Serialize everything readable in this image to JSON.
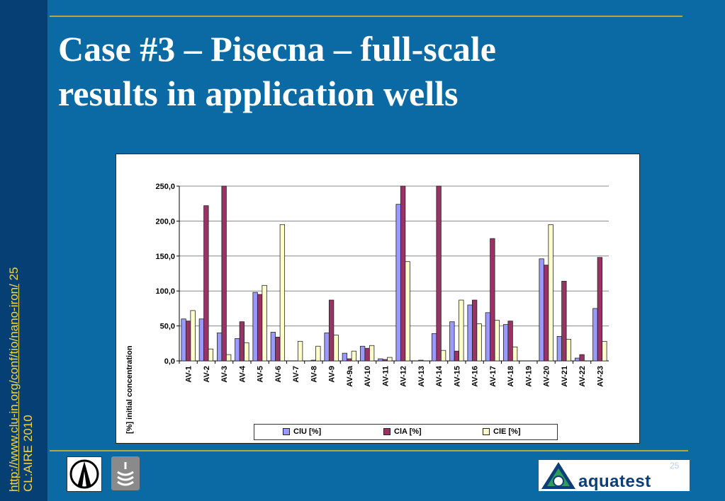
{
  "slide": {
    "title_line1": "Case #3 – Pisecna – full-scale",
    "title_line2": "results in application wells",
    "side_link": "http://www.clu-in.org/conf/tio/nano-iron/",
    "side_page": "25",
    "side_credit": "CL:AIRE 2010",
    "page_number": "25",
    "logo_text": "aquatest"
  },
  "colors": {
    "background": "#0b6aa3",
    "sidebar": "#063f73",
    "accent_rule": "#b9a640",
    "side_text": "#f2d64a",
    "ciu": "#9999ff",
    "cia": "#993366",
    "cie": "#ffffcc"
  },
  "icons": [
    "survey-instrument-logo",
    "wave-logo",
    "aquatest-triangle-logo"
  ],
  "chart_data": {
    "type": "bar",
    "ylabel": "[%] initial concentration",
    "ylim": [
      0,
      250
    ],
    "yticks": [
      "0,0",
      "50,0",
      "100,0",
      "150,0",
      "200,0",
      "250,0"
    ],
    "ytick_values": [
      0,
      50,
      100,
      150,
      200,
      250
    ],
    "grid": "horizontal",
    "legend_position": "bottom",
    "categories": [
      "AV-1",
      "AV-2",
      "AV-3",
      "AV-4",
      "AV-5",
      "AV-6",
      "AV-7",
      "AV-8",
      "AV-9",
      "AV-9a",
      "AV-10",
      "AV-11",
      "AV-12",
      "AV-13",
      "AV-14",
      "AV-15",
      "AV-16",
      "AV-17",
      "AV-18",
      "AV-19",
      "AV-20",
      "AV-21",
      "AV-22",
      "AV-23"
    ],
    "series": [
      {
        "name": "ClU [%]",
        "color": "#9999ff",
        "values": [
          60,
          60,
          40,
          32,
          98,
          41,
          0,
          0,
          40,
          11,
          21,
          3,
          224,
          0,
          39,
          56,
          80,
          69,
          52,
          0,
          146,
          35,
          4,
          75
        ]
      },
      {
        "name": "ClA [%]",
        "color": "#993366",
        "values": [
          57,
          222,
          252,
          56,
          95,
          34,
          0,
          1,
          87,
          3,
          18,
          2,
          252,
          1,
          252,
          14,
          87,
          175,
          57,
          0,
          137,
          114,
          9,
          148
        ]
      },
      {
        "name": "ClE [%]",
        "color": "#ffffcc",
        "values": [
          72,
          17,
          9,
          26,
          108,
          195,
          28,
          21,
          37,
          14,
          22,
          5,
          142,
          0,
          15,
          87,
          53,
          58,
          20,
          0,
          195,
          31,
          0,
          28
        ]
      }
    ]
  }
}
